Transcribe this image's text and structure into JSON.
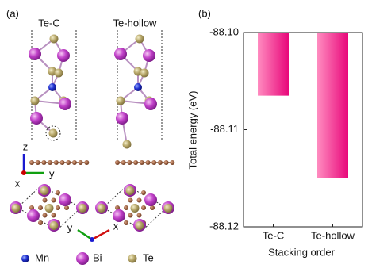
{
  "panel_a": {
    "label": "(a)",
    "structures": [
      "Te-C",
      "Te-hollow"
    ],
    "axes_side": [
      "z",
      "y",
      "x"
    ],
    "axes_top": [
      "y",
      "x"
    ],
    "legend": [
      "Mn",
      "Bi",
      "Te"
    ]
  },
  "chart_data": {
    "type": "bar",
    "panel_label": "(b)",
    "categories": [
      "Te-C",
      "Te-hollow"
    ],
    "values": [
      -88.1065,
      -88.115
    ],
    "color": "#e8077a",
    "ylim": [
      -88.12,
      -88.1
    ],
    "yticks": [
      -88.12,
      -88.11,
      {
        "value": -88.1,
        "label": "-88.10"
      }
    ],
    "ylabel": "Total energy (eV)",
    "xlabel": "Stacking order"
  }
}
